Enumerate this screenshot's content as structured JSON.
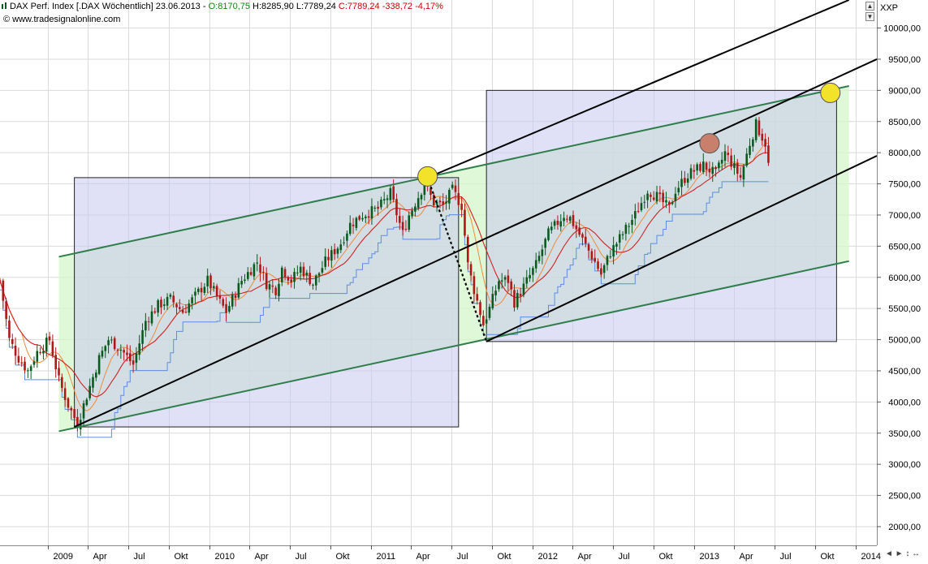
{
  "header": {
    "title": "DAX Perf. Index [.DAX  Wöchentlich]",
    "date": "23.06.2013",
    "open": "O:8170,75",
    "high": "H:8285,90",
    "low": "L:7789,24",
    "close": "C:7789,24",
    "change": "-338,72",
    "change_pct": "-4,17%",
    "source": "www.tradesignalonline.com",
    "symbol_label": "XXP"
  },
  "colors": {
    "background": "#ffffff",
    "grid": "#d9dcd9",
    "up_candle": "#0a5a1e",
    "down_candle": "#b01818",
    "open_color": "#0a8a0a",
    "down_text": "#cc0000",
    "box_fill": "#c7c9ee",
    "channel_fill": "#d4f5c9",
    "channel_line": "#2e7d4a",
    "trend_line": "#000000",
    "ma_red": "#d42020",
    "ma_orange": "#f08a3a",
    "stop_blue": "#5a8de0",
    "marker_yellow": "#f3e22a",
    "marker_brown": "#c8806c"
  },
  "chart_data": {
    "type": "candlestick",
    "title": "DAX Perf. Index [.DAX  Wöchentlich]",
    "ylabel": "XXP",
    "ylim": [
      1700,
      10450
    ],
    "xlim": [
      "2008-09-15",
      "2014-02-17"
    ],
    "y_ticks": [
      2000,
      2500,
      3000,
      3500,
      4000,
      4500,
      5000,
      5500,
      6000,
      6500,
      7000,
      7500,
      8000,
      8500,
      9000,
      9500,
      10000
    ],
    "y_tick_labels": [
      "2000,00",
      "2500,00",
      "3000,00",
      "3500,00",
      "4000,00",
      "4500,00",
      "5000,00",
      "5500,00",
      "6000,00",
      "6500,00",
      "7000,00",
      "7500,00",
      "8000,00",
      "8500,00",
      "9000,00",
      "9500,00",
      "10000,00"
    ],
    "x_ticks": [
      {
        "label": "2009",
        "date": "2009-01-01",
        "year": true
      },
      {
        "label": "Apr",
        "date": "2009-04-01"
      },
      {
        "label": "Jul",
        "date": "2009-07-01"
      },
      {
        "label": "Okt",
        "date": "2009-10-01"
      },
      {
        "label": "2010",
        "date": "2010-01-01",
        "year": true
      },
      {
        "label": "Apr",
        "date": "2010-04-01"
      },
      {
        "label": "Jul",
        "date": "2010-07-01"
      },
      {
        "label": "Okt",
        "date": "2010-10-01"
      },
      {
        "label": "2011",
        "date": "2011-01-01",
        "year": true
      },
      {
        "label": "Apr",
        "date": "2011-04-01"
      },
      {
        "label": "Jul",
        "date": "2011-07-01"
      },
      {
        "label": "Okt",
        "date": "2011-10-01"
      },
      {
        "label": "2012",
        "date": "2012-01-01",
        "year": true
      },
      {
        "label": "Apr",
        "date": "2012-04-01"
      },
      {
        "label": "Jul",
        "date": "2012-07-01"
      },
      {
        "label": "Okt",
        "date": "2012-10-01"
      },
      {
        "label": "2013",
        "date": "2013-01-01",
        "year": true
      },
      {
        "label": "Apr",
        "date": "2013-04-01"
      },
      {
        "label": "Jul",
        "date": "2013-07-01"
      },
      {
        "label": "Okt",
        "date": "2013-10-01"
      },
      {
        "label": "2014",
        "date": "2014-01-01",
        "year": true
      }
    ],
    "price_keypoints": [
      [
        "2008-09-15",
        5950
      ],
      [
        "2008-10-06",
        5000
      ],
      [
        "2008-10-27",
        4700
      ],
      [
        "2008-11-17",
        4500
      ],
      [
        "2008-12-08",
        4800
      ],
      [
        "2009-01-05",
        5000
      ],
      [
        "2009-01-26",
        4350
      ],
      [
        "2009-02-16",
        3950
      ],
      [
        "2009-03-09",
        3650
      ],
      [
        "2009-03-30",
        4100
      ],
      [
        "2009-04-27",
        4700
      ],
      [
        "2009-05-18",
        5000
      ],
      [
        "2009-06-15",
        4850
      ],
      [
        "2009-07-13",
        4600
      ],
      [
        "2009-08-10",
        5300
      ],
      [
        "2009-09-07",
        5550
      ],
      [
        "2009-10-05",
        5650
      ],
      [
        "2009-11-02",
        5450
      ],
      [
        "2009-11-30",
        5700
      ],
      [
        "2009-12-28",
        5950
      ],
      [
        "2010-01-25",
        5600
      ],
      [
        "2010-02-08",
        5450
      ],
      [
        "2010-03-15",
        5950
      ],
      [
        "2010-04-19",
        6250
      ],
      [
        "2010-05-10",
        5900
      ],
      [
        "2010-05-31",
        5800
      ],
      [
        "2010-06-14",
        6150
      ],
      [
        "2010-07-05",
        5950
      ],
      [
        "2010-07-26",
        6150
      ],
      [
        "2010-08-23",
        5900
      ],
      [
        "2010-09-20",
        6250
      ],
      [
        "2010-10-25",
        6550
      ],
      [
        "2010-11-15",
        6850
      ],
      [
        "2010-12-13",
        7000
      ],
      [
        "2011-01-17",
        7100
      ],
      [
        "2011-02-14",
        7350
      ],
      [
        "2011-03-14",
        6700
      ],
      [
        "2011-03-28",
        7000
      ],
      [
        "2011-05-02",
        7500
      ],
      [
        "2011-05-23",
        7200
      ],
      [
        "2011-06-13",
        7150
      ],
      [
        "2011-07-04",
        7400
      ],
      [
        "2011-07-25",
        7150
      ],
      [
        "2011-08-08",
        6200
      ],
      [
        "2011-08-22",
        5800
      ],
      [
        "2011-09-12",
        5250
      ],
      [
        "2011-09-26",
        5500
      ],
      [
        "2011-10-17",
        5950
      ],
      [
        "2011-11-07",
        5950
      ],
      [
        "2011-11-21",
        5600
      ],
      [
        "2011-12-12",
        5850
      ],
      [
        "2012-01-09",
        6200
      ],
      [
        "2012-02-06",
        6700
      ],
      [
        "2012-03-12",
        7000
      ],
      [
        "2012-03-26",
        6950
      ],
      [
        "2012-04-23",
        6600
      ],
      [
        "2012-05-21",
        6250
      ],
      [
        "2012-06-04",
        6050
      ],
      [
        "2012-06-25",
        6400
      ],
      [
        "2012-07-23",
        6700
      ],
      [
        "2012-08-20",
        7000
      ],
      [
        "2012-09-17",
        7400
      ],
      [
        "2012-10-08",
        7300
      ],
      [
        "2012-11-05",
        7100
      ],
      [
        "2012-11-19",
        7400
      ],
      [
        "2012-12-17",
        7650
      ],
      [
        "2013-01-21",
        7800
      ],
      [
        "2013-02-18",
        7650
      ],
      [
        "2013-03-11",
        8000
      ],
      [
        "2013-04-15",
        7600
      ],
      [
        "2013-05-06",
        8150
      ],
      [
        "2013-05-20",
        8450
      ],
      [
        "2013-06-10",
        8150
      ],
      [
        "2013-06-17",
        7800
      ]
    ],
    "annotations": {
      "boxes": [
        {
          "x0": "2009-03-02",
          "x1": "2011-07-18",
          "y0": 3600,
          "y1": 7600
        },
        {
          "x0": "2011-09-19",
          "x1": "2013-11-18",
          "y0": 4970,
          "y1": 9000
        }
      ],
      "channel_lines": [
        {
          "x0": "2009-01-26",
          "y0": 6330,
          "x1": "2013-12-16",
          "y1": 9070
        },
        {
          "x0": "2009-01-26",
          "y0": 3530,
          "x1": "2013-12-16",
          "y1": 6260
        }
      ],
      "trend_lines": [
        {
          "x0": "2009-03-02",
          "y0": 3600,
          "x1": "2014-02-17",
          "y1": 9500
        },
        {
          "x0": "2011-05-09",
          "y0": 7600,
          "x1": "2013-12-16",
          "y1": 10450
        },
        {
          "x0": "2011-09-19",
          "y0": 4970,
          "x1": "2014-02-17",
          "y1": 7950
        }
      ],
      "markers": [
        {
          "date": "2011-05-09",
          "value": 7620,
          "color": "yellow"
        },
        {
          "date": "2013-11-04",
          "value": 8960,
          "color": "yellow"
        },
        {
          "date": "2013-02-04",
          "value": 8150,
          "color": "brown"
        }
      ]
    }
  },
  "bottom_bar": "◄ ► ↕ ↔"
}
